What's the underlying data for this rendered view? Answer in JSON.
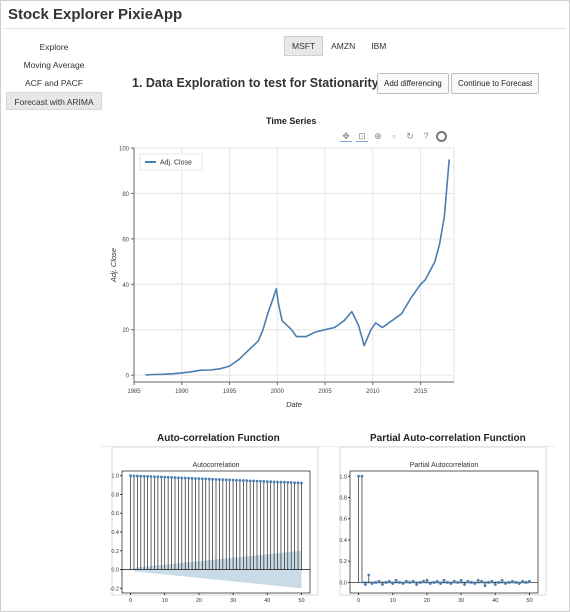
{
  "app": {
    "title": "Stock Explorer PixieApp"
  },
  "sidebar": {
    "items": [
      {
        "label": "Explore",
        "active": false
      },
      {
        "label": "Moving Average",
        "active": false
      },
      {
        "label": "ACF and PACF",
        "active": false
      },
      {
        "label": "Forecast with ARIMA",
        "active": true
      }
    ]
  },
  "tickers": [
    {
      "label": "MSFT",
      "active": true
    },
    {
      "label": "AMZN",
      "active": false
    },
    {
      "label": "IBM",
      "active": false
    }
  ],
  "section": {
    "title": "1. Data Exploration to test for Stationarity",
    "add_differencing_label": "Add differencing",
    "continue_label": "Continue to Forecast"
  },
  "toolbar": {
    "icons": [
      "pan-icon",
      "box-zoom-icon",
      "wheel-zoom-icon",
      "save-icon",
      "reset-icon",
      "help-icon",
      "bokeh-logo-icon"
    ]
  },
  "colors": {
    "series": "#4a7eb0",
    "grid": "#e6e6e6",
    "conf_band": "#b8cfe0"
  },
  "chart_data": [
    {
      "type": "line",
      "title": "Time Series",
      "xlabel": "Date",
      "ylabel": "Adj. Close",
      "legend": [
        "Adj. Close"
      ],
      "legend_position": "top-left",
      "xlim": [
        1985,
        2018.5
      ],
      "ylim": [
        -3,
        100
      ],
      "x_ticks": [
        1985,
        1990,
        1995,
        2000,
        2005,
        2010,
        2015
      ],
      "y_ticks": [
        0,
        20,
        40,
        60,
        80,
        100
      ],
      "series": [
        {
          "name": "Adj. Close",
          "x": [
            1986.2,
            1987,
            1988,
            1989,
            1990,
            1991,
            1992,
            1993,
            1994,
            1995,
            1996,
            1997,
            1998,
            1998.5,
            1999,
            1999.5,
            1999.9,
            2000.1,
            2000.5,
            2001,
            2001.5,
            2002,
            2003,
            2004,
            2005,
            2006,
            2007,
            2007.8,
            2008.5,
            2009.1,
            2009.8,
            2010.3,
            2011,
            2012,
            2013,
            2014,
            2015,
            2015.5,
            2016,
            2016.5,
            2017,
            2017.5,
            2018
          ],
          "values": [
            0.1,
            0.3,
            0.4,
            0.6,
            1.0,
            1.5,
            2.2,
            2.3,
            2.8,
            4,
            7,
            11,
            15,
            20,
            27,
            33,
            38,
            32,
            24,
            22,
            20,
            17,
            17,
            19,
            20,
            21,
            24,
            28,
            22,
            13,
            20,
            23,
            21,
            24,
            27,
            34,
            40,
            42,
            46,
            50,
            58,
            70,
            95
          ]
        }
      ],
      "grid": true
    },
    {
      "type": "bar",
      "title": "Autocorrelation",
      "heading": "Auto-correlation Function",
      "xlim": [
        0,
        50
      ],
      "ylim": [
        -0.2,
        1.0
      ],
      "x_ticks": [
        0,
        10,
        20,
        30,
        40,
        50
      ],
      "y_ticks": [
        -0.2,
        0.0,
        0.2,
        0.4,
        0.6,
        0.8,
        1.0
      ],
      "series": [
        {
          "name": "Autocorrelation",
          "x": [
            0,
            1,
            2,
            3,
            4,
            5,
            6,
            7,
            8,
            9,
            10,
            11,
            12,
            13,
            14,
            15,
            16,
            17,
            18,
            19,
            20,
            21,
            22,
            23,
            24,
            25,
            26,
            27,
            28,
            29,
            30,
            31,
            32,
            33,
            34,
            35,
            36,
            37,
            38,
            39,
            40,
            41,
            42,
            43,
            44,
            45,
            46,
            47,
            48,
            49,
            50
          ],
          "values": [
            1.0,
            0.998,
            0.997,
            0.995,
            0.994,
            0.992,
            0.991,
            0.989,
            0.988,
            0.986,
            0.985,
            0.983,
            0.981,
            0.98,
            0.978,
            0.977,
            0.975,
            0.973,
            0.972,
            0.97,
            0.969,
            0.967,
            0.966,
            0.964,
            0.962,
            0.961,
            0.959,
            0.958,
            0.956,
            0.955,
            0.953,
            0.951,
            0.95,
            0.948,
            0.947,
            0.945,
            0.944,
            0.942,
            0.941,
            0.939,
            0.937,
            0.936,
            0.934,
            0.933,
            0.931,
            0.93,
            0.928,
            0.927,
            0.925,
            0.924,
            0.922
          ]
        }
      ],
      "confidence_band": {
        "x": [
          1,
          50
        ],
        "upper": [
          0.02,
          0.2
        ],
        "lower": [
          -0.02,
          -0.2
        ]
      },
      "grid": false
    },
    {
      "type": "bar",
      "title": "Partial Autocorrelation",
      "heading": "Partial Auto-correlation Function",
      "xlim": [
        0,
        50
      ],
      "ylim": [
        -0.05,
        1.0
      ],
      "x_ticks": [
        0,
        10,
        20,
        30,
        40,
        50
      ],
      "y_ticks": [
        0.0,
        0.2,
        0.4,
        0.6,
        0.8,
        1.0
      ],
      "series": [
        {
          "name": "Partial Autocorrelation",
          "x": [
            0,
            1,
            2,
            3,
            4,
            5,
            6,
            7,
            8,
            9,
            10,
            11,
            12,
            13,
            14,
            15,
            16,
            17,
            18,
            19,
            20,
            21,
            22,
            23,
            24,
            25,
            26,
            27,
            28,
            29,
            30,
            31,
            32,
            33,
            34,
            35,
            36,
            37,
            38,
            39,
            40,
            41,
            42,
            43,
            44,
            45,
            46,
            47,
            48,
            49,
            50
          ],
          "values": [
            1.0,
            1.0,
            -0.02,
            0.07,
            -0.01,
            0.0,
            0.01,
            -0.02,
            0.0,
            0.01,
            -0.01,
            0.02,
            0.0,
            -0.01,
            0.01,
            0.0,
            0.01,
            -0.02,
            0.0,
            0.01,
            0.02,
            -0.01,
            0.0,
            0.01,
            -0.01,
            0.02,
            0.0,
            -0.01,
            0.01,
            0.0,
            0.02,
            -0.02,
            0.01,
            0.0,
            -0.01,
            0.02,
            0.01,
            -0.03,
            0.0,
            0.01,
            -0.02,
            0.0,
            0.02,
            -0.01,
            0.0,
            0.01,
            0.0,
            -0.01,
            0.01,
            0.0,
            0.01
          ]
        }
      ],
      "confidence_band": {
        "x": [
          1,
          50
        ],
        "upper": [
          0.015,
          0.015
        ],
        "lower": [
          -0.015,
          -0.015
        ]
      },
      "grid": false
    }
  ]
}
